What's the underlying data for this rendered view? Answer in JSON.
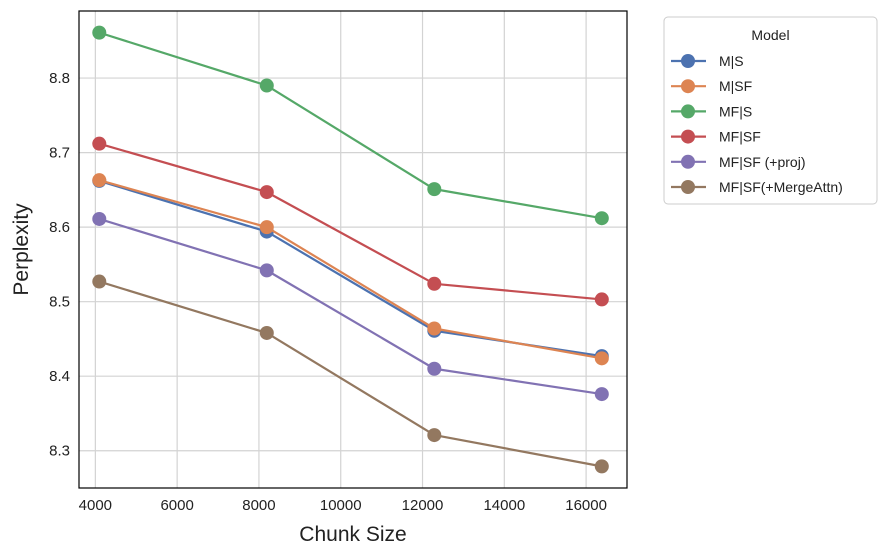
{
  "chart_data": {
    "type": "line",
    "title": "",
    "xlabel": "Chunk Size",
    "ylabel": "Perplexity",
    "xlim": [
      3600,
      17000
    ],
    "ylim": [
      8.25,
      8.89
    ],
    "xticks": [
      4000,
      6000,
      8000,
      10000,
      12000,
      14000,
      16000
    ],
    "yticks": [
      8.3,
      8.4,
      8.5,
      8.6,
      8.7,
      8.8
    ],
    "grid": true,
    "legend": {
      "title": "Model",
      "placement": "outside-right-top"
    },
    "x": [
      4096,
      8192,
      12288,
      16384
    ],
    "series": [
      {
        "name": "M|S",
        "color": "#4c72b0",
        "values": [
          8.662,
          8.594,
          8.461,
          8.427
        ]
      },
      {
        "name": "M|SF",
        "color": "#dd8452",
        "values": [
          8.663,
          8.6,
          8.464,
          8.424
        ]
      },
      {
        "name": "MF|S",
        "color": "#55a868",
        "values": [
          8.861,
          8.79,
          8.651,
          8.612
        ]
      },
      {
        "name": "MF|SF",
        "color": "#c44e52",
        "values": [
          8.712,
          8.647,
          8.524,
          8.503
        ]
      },
      {
        "name": "MF|SF (+proj)",
        "color": "#8172b3",
        "values": [
          8.611,
          8.542,
          8.41,
          8.376
        ]
      },
      {
        "name": "MF|SF(+MergeAttn)",
        "color": "#937860",
        "values": [
          8.527,
          8.458,
          8.321,
          8.279
        ]
      }
    ]
  }
}
